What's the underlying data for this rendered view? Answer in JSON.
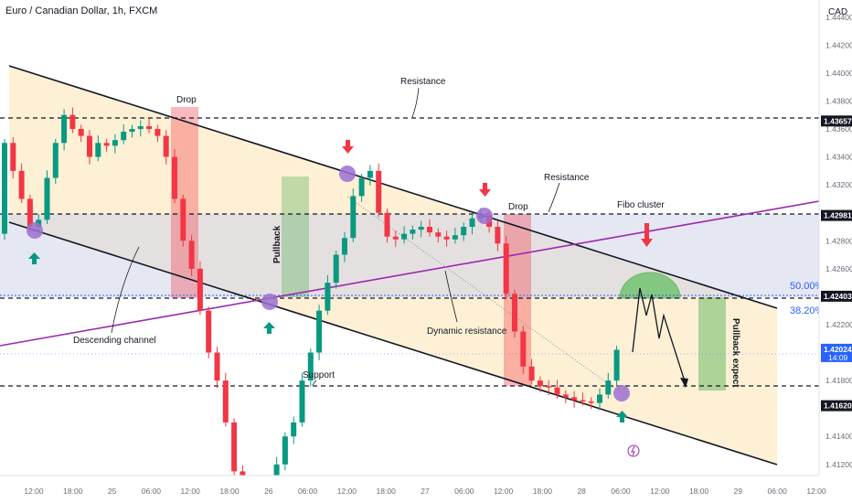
{
  "header": {
    "title": "Euro / Canadian Dollar, 1h, FXCM",
    "currency": "CAD"
  },
  "price_axis": {
    "ticks": [
      "1.44400",
      "1.44200",
      "1.44000",
      "1.43800",
      "1.43600",
      "1.43400",
      "1.43200",
      "1.43000",
      "1.42800",
      "1.42600",
      "1.42400",
      "1.42200",
      "1.42000",
      "1.41800",
      "1.41600",
      "1.41400",
      "1.41200"
    ],
    "tags": [
      {
        "label": "1.43657",
        "price": 1.43657,
        "kind": "level"
      },
      {
        "label": "1.42981",
        "price": 1.42981,
        "kind": "level"
      },
      {
        "label": "1.42403",
        "price": 1.42403,
        "kind": "level"
      },
      {
        "label": "1.42024",
        "sub": "14:09",
        "price": 1.42024,
        "kind": "current"
      },
      {
        "label": "1.41620",
        "price": 1.4162,
        "kind": "level"
      }
    ]
  },
  "time_axis": {
    "ticks": [
      "12:00",
      "18:00",
      "25",
      "06:00",
      "12:00",
      "18:00",
      "26",
      "06:00",
      "12:00",
      "18:00",
      "27",
      "06:00",
      "12:00",
      "18:00",
      "28",
      "06:00",
      "12:00",
      "18:00",
      "29",
      "06:00",
      "12:00"
    ]
  },
  "annotations": {
    "resistance_top": "Resistance",
    "resistance_mid": "Resistance",
    "fibo_cluster": "Fibo cluster",
    "drop1": "Drop",
    "drop2": "Drop",
    "pullback": "Pullback",
    "pullback_expect": "Pullback expect",
    "dynamic_resistance": "Dynamic resistance",
    "descending_channel": "Descending channel",
    "support": "Support",
    "fib50": "50.00%",
    "fib382": "38.20%"
  },
  "colors": {
    "bull": "#089981",
    "bear": "#f23645",
    "channel": "#131722",
    "trendline": "#9c27b0",
    "fib": "#2962ff",
    "drop_zone": "#f23645",
    "pullback_zone": "#4caf50",
    "zone_fill": "#fdebc7",
    "band_fill": "#d6daf0"
  },
  "chart_data": {
    "type": "candlestick",
    "title": "Euro / Canadian Dollar, 1h, FXCM",
    "ylim": [
      1.4112,
      1.4449
    ],
    "levels": [
      1.43657,
      1.42981,
      1.42403,
      1.4162
    ],
    "current_price": 1.42024,
    "fib_levels": [
      {
        "label": "50.00%",
        "price": 1.4242
      },
      {
        "label": "38.20%",
        "price": 1.4229
      }
    ],
    "closes": [
      1.435,
      1.433,
      1.431,
      1.429,
      1.4295,
      1.4325,
      1.435,
      1.437,
      1.436,
      1.4355,
      1.434,
      1.435,
      1.4348,
      1.4352,
      1.4358,
      1.436,
      1.4362,
      1.436,
      1.4355,
      1.434,
      1.431,
      1.428,
      1.426,
      1.423,
      1.42,
      1.418,
      1.415,
      1.4115,
      1.41,
      1.4105,
      1.4108,
      1.41,
      1.412,
      1.414,
      1.415,
      1.418,
      1.42,
      1.423,
      1.425,
      1.427,
      1.4282,
      1.4312,
      1.4325,
      1.433,
      1.43,
      1.4283,
      1.4281,
      1.4285,
      1.4288,
      1.429,
      1.4286,
      1.4283,
      1.4281,
      1.4284,
      1.429,
      1.4296,
      1.4298,
      1.429,
      1.4278,
      1.4242,
      1.4215,
      1.419,
      1.418,
      1.4176,
      1.4175,
      1.417,
      1.4168,
      1.4166,
      1.4165,
      1.4164,
      1.417,
      1.418,
      1.4202
    ],
    "xlabel": "",
    "ylabel": ""
  }
}
